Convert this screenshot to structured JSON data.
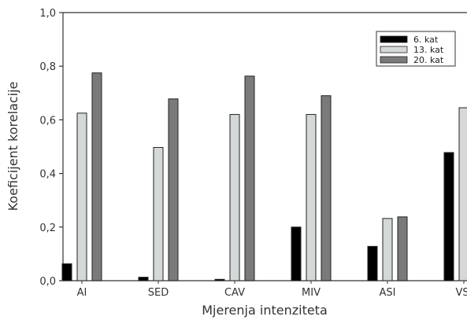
{
  "chart_data": {
    "type": "bar",
    "xlabel": "Mjerenja intenziteta",
    "ylabel": "Koeficijent korelacije",
    "ylim": [
      0,
      1.0
    ],
    "yticks": [
      "0,0",
      "0,2",
      "0,4",
      "0,6",
      "0,8",
      "1,0"
    ],
    "ytick_values": [
      0,
      0.2,
      0.4,
      0.6,
      0.8,
      1.0
    ],
    "categories": [
      "AI",
      "SED",
      "CAV",
      "MIV",
      "ASI",
      "VSI"
    ],
    "series": [
      {
        "name": "6. kat",
        "color": "#000000",
        "values": [
          0.063,
          0.013,
          0.005,
          0.2,
          0.128,
          0.478
        ]
      },
      {
        "name": "13. kat",
        "color": "#d4d8d8",
        "values": [
          0.625,
          0.497,
          0.62,
          0.62,
          0.232,
          0.645
        ]
      },
      {
        "name": "20. kat",
        "color": "#7a7a7a",
        "values": [
          0.775,
          0.678,
          0.763,
          0.69,
          0.238,
          null
        ]
      }
    ],
    "legend": "top-right",
    "grid": false
  }
}
